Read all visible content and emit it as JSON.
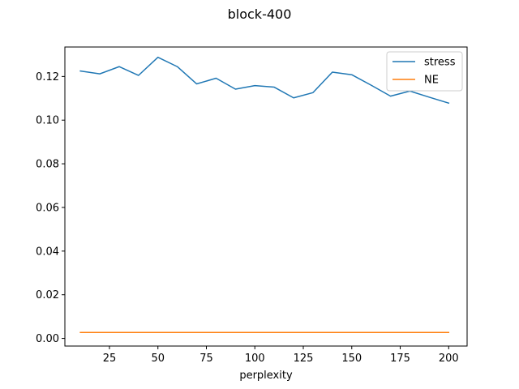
{
  "chart_data": {
    "type": "line",
    "title": "block-400",
    "xlabel": "perplexity",
    "ylabel": "",
    "xlim": [
      2,
      209.5
    ],
    "ylim": [
      -0.0035,
      0.1335
    ],
    "xticks": [
      25,
      50,
      75,
      100,
      125,
      150,
      175,
      200
    ],
    "xtick_labels": [
      "25",
      "50",
      "75",
      "100",
      "125",
      "150",
      "175",
      "200"
    ],
    "yticks": [
      0.0,
      0.02,
      0.04,
      0.06,
      0.08,
      0.1,
      0.12
    ],
    "ytick_labels": [
      "0.00",
      "0.02",
      "0.04",
      "0.06",
      "0.08",
      "0.10",
      "0.12"
    ],
    "grid": false,
    "legend_position": "top-right",
    "x": [
      10,
      20,
      30,
      40,
      50,
      60,
      70,
      80,
      90,
      100,
      110,
      120,
      130,
      140,
      150,
      160,
      170,
      180,
      190,
      200
    ],
    "series": [
      {
        "name": "stress",
        "color": "#1f77b4",
        "values": [
          0.1225,
          0.1212,
          0.1245,
          0.1205,
          0.1288,
          0.1245,
          0.1166,
          0.1192,
          0.1142,
          0.1158,
          0.1151,
          0.1102,
          0.1126,
          0.122,
          0.1208,
          0.116,
          0.111,
          0.1133,
          0.1105,
          0.1078
        ]
      },
      {
        "name": "NE",
        "color": "#ff7f0e",
        "values": [
          0.0027,
          0.0027,
          0.0027,
          0.0027,
          0.0027,
          0.0027,
          0.0027,
          0.0027,
          0.0027,
          0.0027,
          0.0027,
          0.0027,
          0.0027,
          0.0027,
          0.0027,
          0.0027,
          0.0027,
          0.0027,
          0.0027,
          0.0027
        ]
      }
    ]
  }
}
